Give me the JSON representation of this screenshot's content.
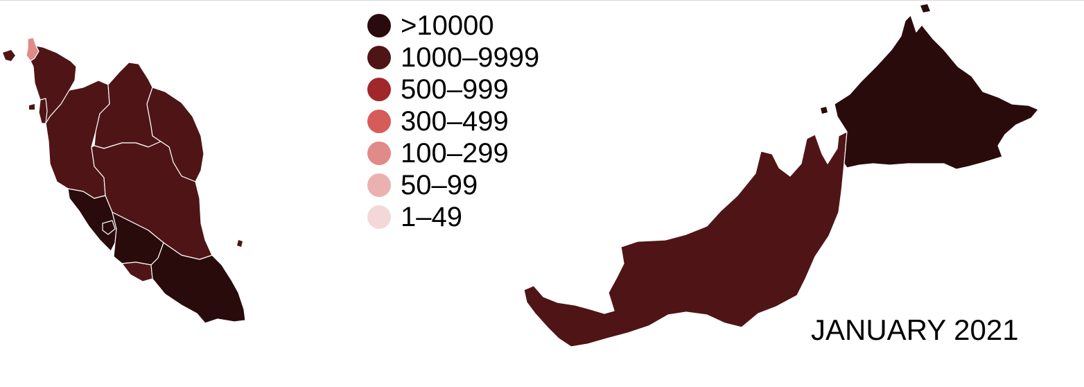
{
  "legend": {
    "items": [
      {
        "label": ">10000",
        "color": "#2a0b0c"
      },
      {
        "label": "1000–9999",
        "color": "#4f1516"
      },
      {
        "label": "500–999",
        "color": "#a0282b"
      },
      {
        "label": "300–499",
        "color": "#d65c5a"
      },
      {
        "label": "100–299",
        "color": "#e08a89"
      },
      {
        "label": "50–99",
        "color": "#ebb1b0"
      },
      {
        "label": "1–49",
        "color": "#f4d8d7"
      }
    ]
  },
  "date_label": "JANUARY 2021"
}
